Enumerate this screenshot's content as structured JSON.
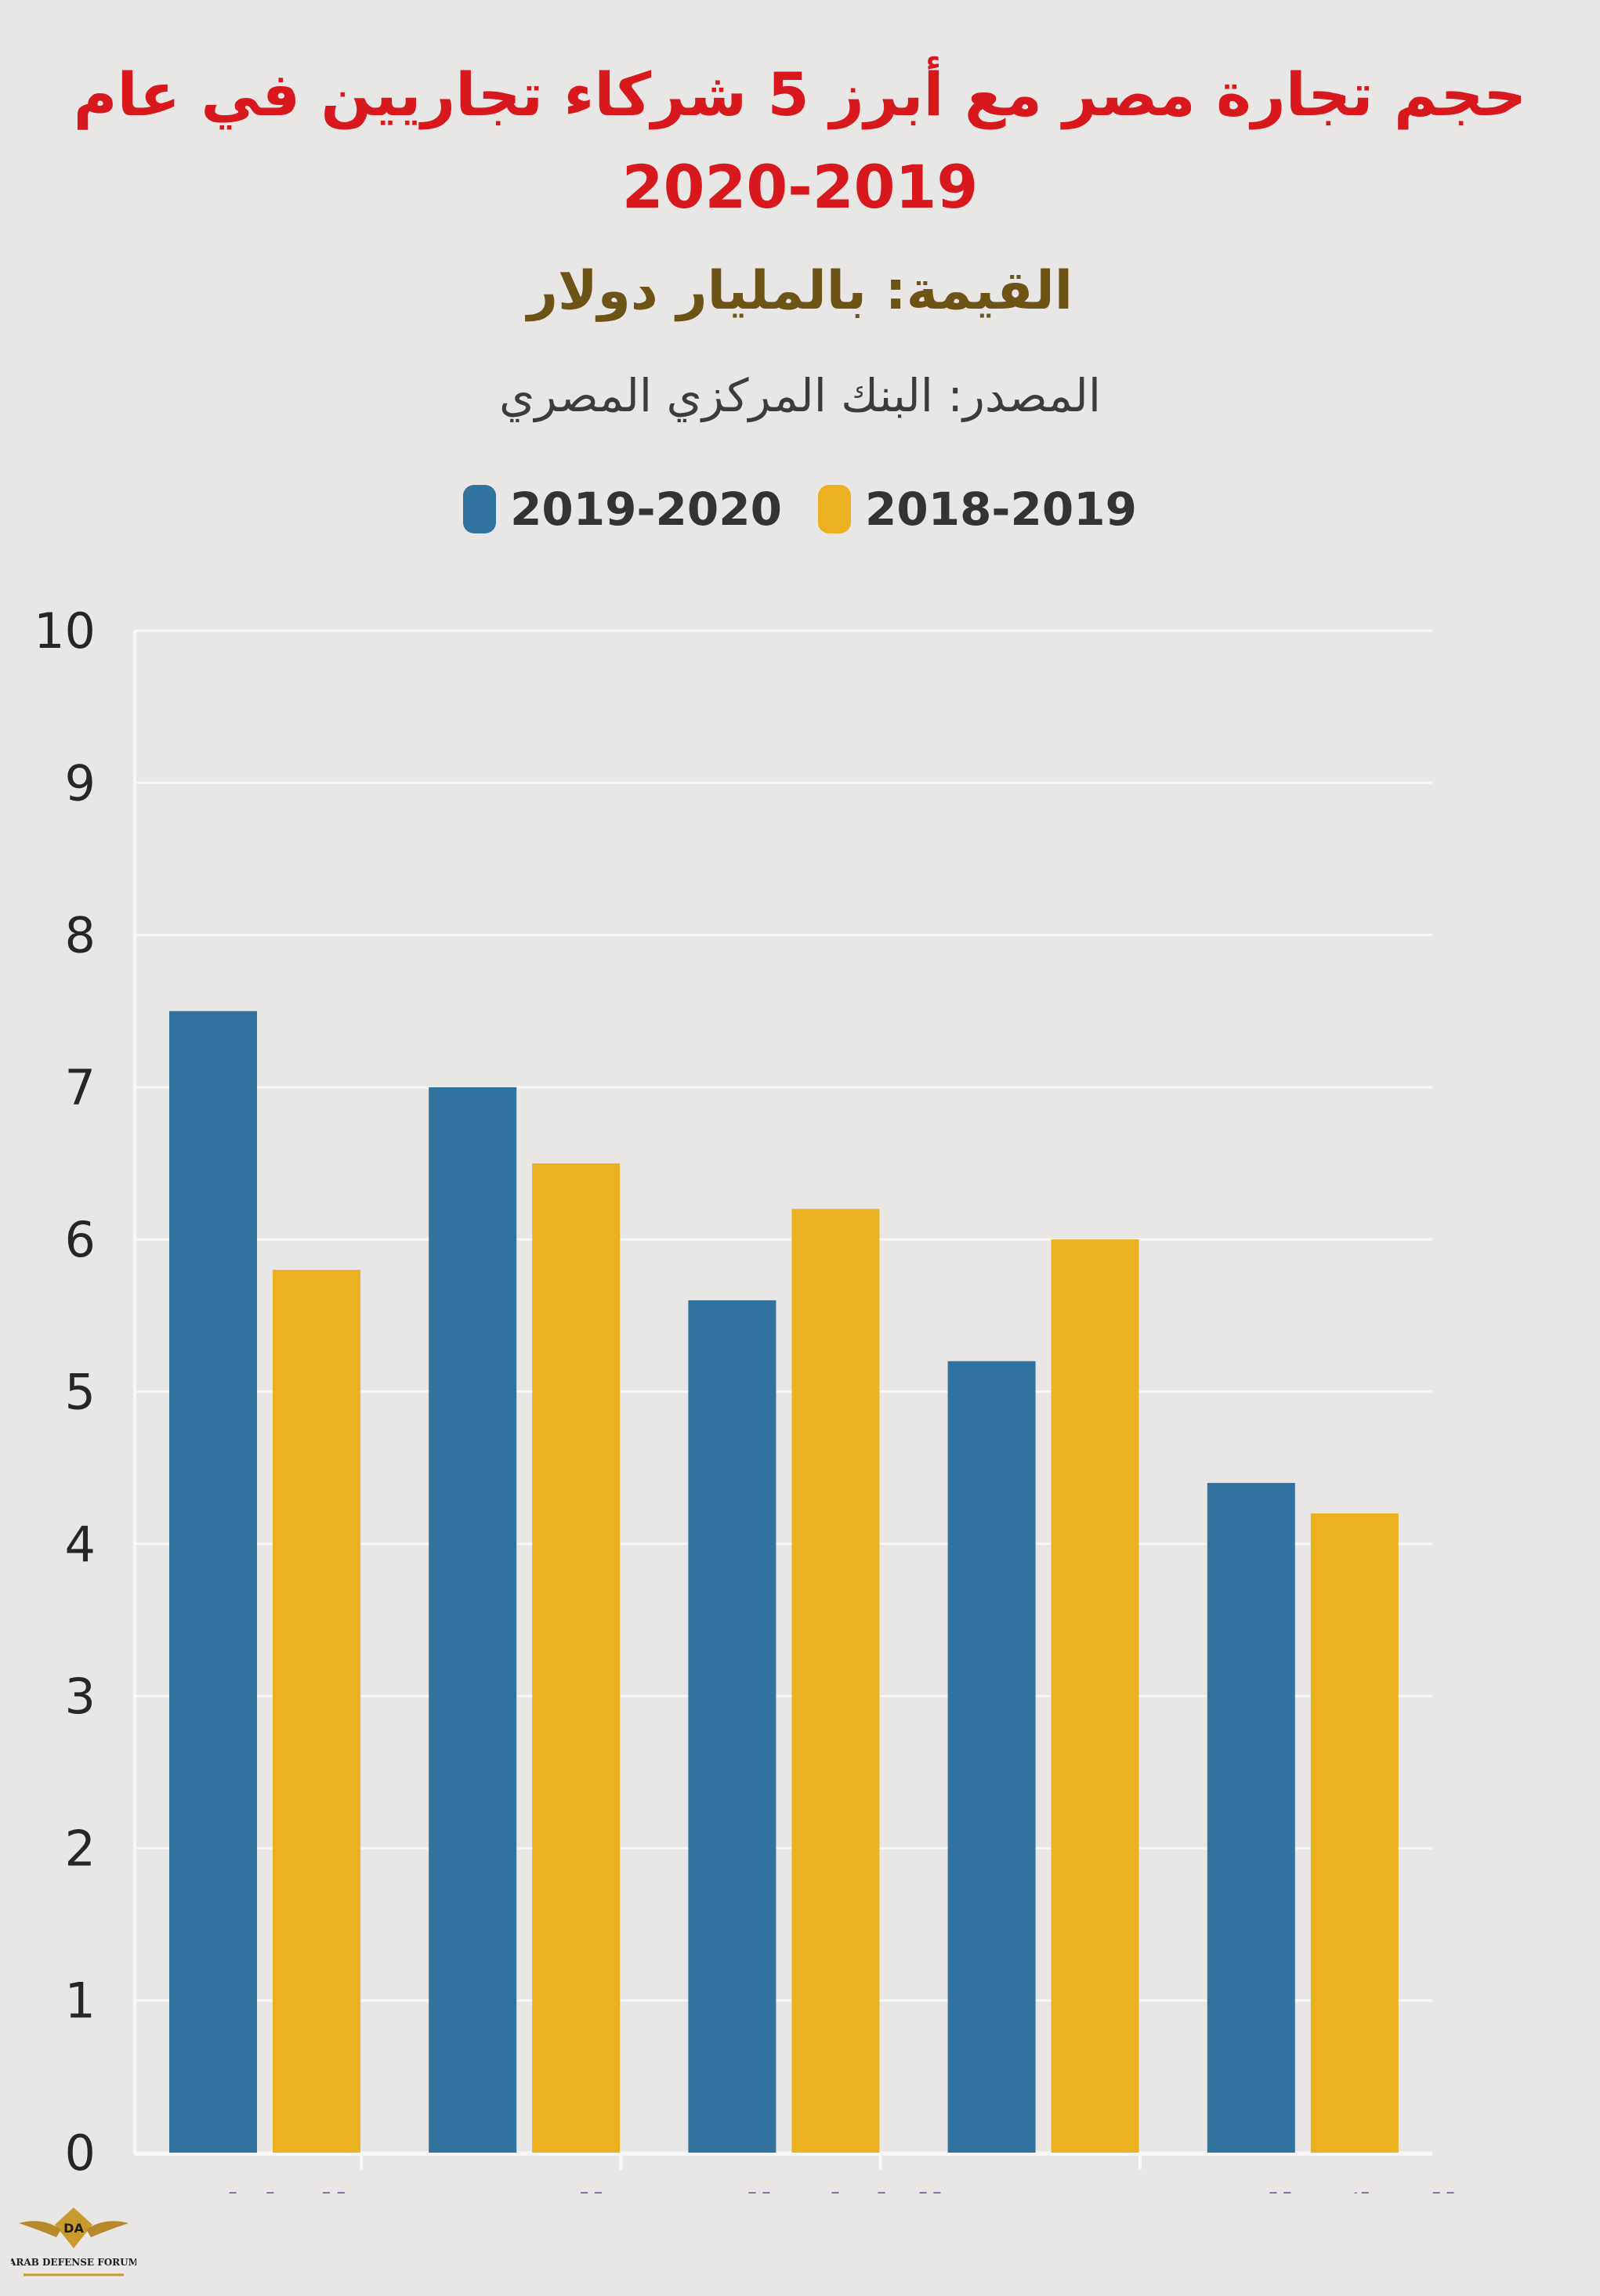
{
  "header": {
    "title": "حجم تجارة مصر مع أبرز 5 شركاء تجاريين في عام 2019-2020",
    "unit": "القيمة: بالمليار دولار",
    "source": "المصدر: البنك المركزي المصري"
  },
  "legend": {
    "items": [
      {
        "label": "2019-2020",
        "color": "#31729f"
      },
      {
        "label": "2018-2019",
        "color": "#ecb121"
      }
    ]
  },
  "chart_data": {
    "type": "bar",
    "title": "حجم تجارة مصر مع أبرز 5 شركاء تجاريين في عام 2019-2020",
    "ylabel": "القيمة: بالمليار دولار",
    "xlabel": "",
    "ylim": [
      0,
      10
    ],
    "yticks": [
      0,
      1,
      2,
      3,
      4,
      5,
      6,
      7,
      8,
      9,
      10
    ],
    "grid": true,
    "categories": [
      "الإمارات",
      "الصين",
      "الولايات المتحدة",
      "",
      "المملكة المتحدة"
    ],
    "series": [
      {
        "name": "2019-2020",
        "color": "#31729f",
        "values": [
          7.5,
          7.0,
          5.6,
          5.2,
          4.4
        ]
      },
      {
        "name": "2018-2019",
        "color": "#ecb121",
        "values": [
          5.8,
          6.5,
          6.2,
          6.0,
          4.2
        ]
      }
    ]
  },
  "watermark": {
    "logo_text": "ARAB DEFENSE FORUM",
    "logo_initials": "DA"
  }
}
